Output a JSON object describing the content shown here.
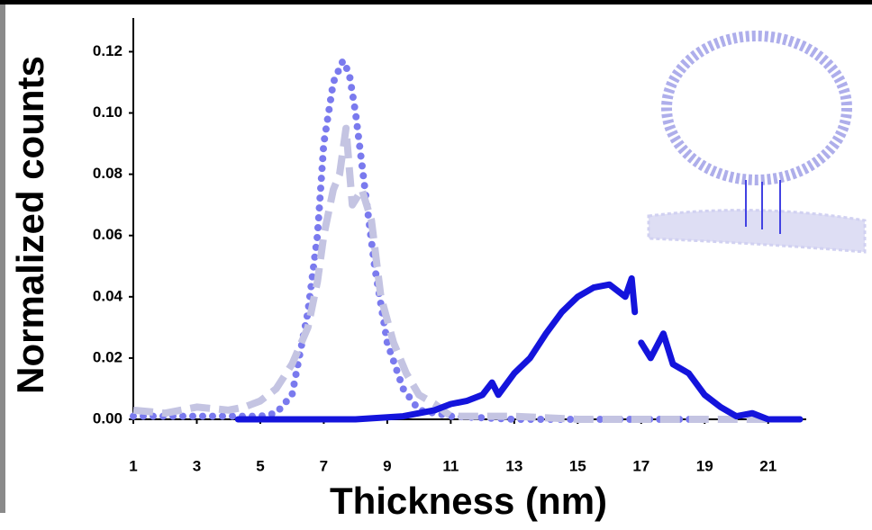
{
  "chart_data": {
    "type": "line",
    "x_label": "Thickness (nm)",
    "y_label": "Normalized counts",
    "xlim": [
      1,
      22.2
    ],
    "ylim": [
      0,
      0.131
    ],
    "xticks": [
      1,
      3,
      5,
      7,
      9,
      11,
      13,
      15,
      17,
      19,
      21
    ],
    "yticks": [
      {
        "value": 0,
        "label": "0.00"
      },
      0.02,
      0.04,
      0.06,
      0.08,
      {
        "value": 0.1,
        "label": "0.10"
      },
      0.12
    ],
    "series": [
      {
        "color": "#7a7aee",
        "style": "dotted",
        "x": [
          1,
          2,
          3,
          4,
          5,
          5.5,
          6,
          6.5,
          6.8,
          7,
          7.3,
          7.6,
          7.8,
          8,
          8.3,
          8.6,
          9,
          9.5,
          10,
          11,
          13,
          15,
          17,
          19
        ],
        "values": [
          0.001,
          0.001,
          0.001,
          0.001,
          0.001,
          0.002,
          0.008,
          0.035,
          0.06,
          0.09,
          0.11,
          0.117,
          0.113,
          0.1,
          0.075,
          0.05,
          0.025,
          0.01,
          0.003,
          0.001,
          0,
          0,
          0,
          0
        ]
      },
      {
        "color": "#c4c4e2",
        "style": "dashed",
        "x": [
          1,
          2,
          3,
          4,
          4.5,
          5,
          5.5,
          6,
          6.5,
          6.8,
          7,
          7.3,
          7.5,
          7.7,
          7.9,
          8.2,
          8.5,
          8.8,
          9.2,
          9.6,
          10,
          10.5,
          11,
          13,
          15,
          17,
          19,
          21
        ],
        "values": [
          0.003,
          0.002,
          0.004,
          0.003,
          0.004,
          0.006,
          0.01,
          0.018,
          0.03,
          0.045,
          0.06,
          0.075,
          0.08,
          0.095,
          0.07,
          0.075,
          0.065,
          0.04,
          0.025,
          0.015,
          0.008,
          0.005,
          0.001,
          0.001,
          0,
          0,
          0,
          0
        ]
      },
      {
        "color": "#1414dc",
        "style": "solid",
        "x": [
          4.3,
          6,
          8,
          9.5,
          10.5,
          11,
          11.5,
          12,
          12.3,
          12.5,
          13,
          13.5,
          14,
          14.5,
          15,
          15.5,
          16,
          16.5,
          16.7,
          16.8,
          16.9,
          17,
          17.3,
          17.7,
          18,
          18.5,
          19,
          19.5,
          20,
          20.5,
          21,
          22
        ],
        "values": [
          0,
          0,
          0,
          0.001,
          0.003,
          0.005,
          0.006,
          0.008,
          0.012,
          0.008,
          0.015,
          0.02,
          0.028,
          0.035,
          0.04,
          0.043,
          0.044,
          0.04,
          0.046,
          0.035,
          null,
          0.025,
          0.02,
          0.028,
          0.018,
          0.015,
          0.008,
          0.004,
          0.001,
          0.002,
          0,
          0
        ]
      }
    ]
  }
}
